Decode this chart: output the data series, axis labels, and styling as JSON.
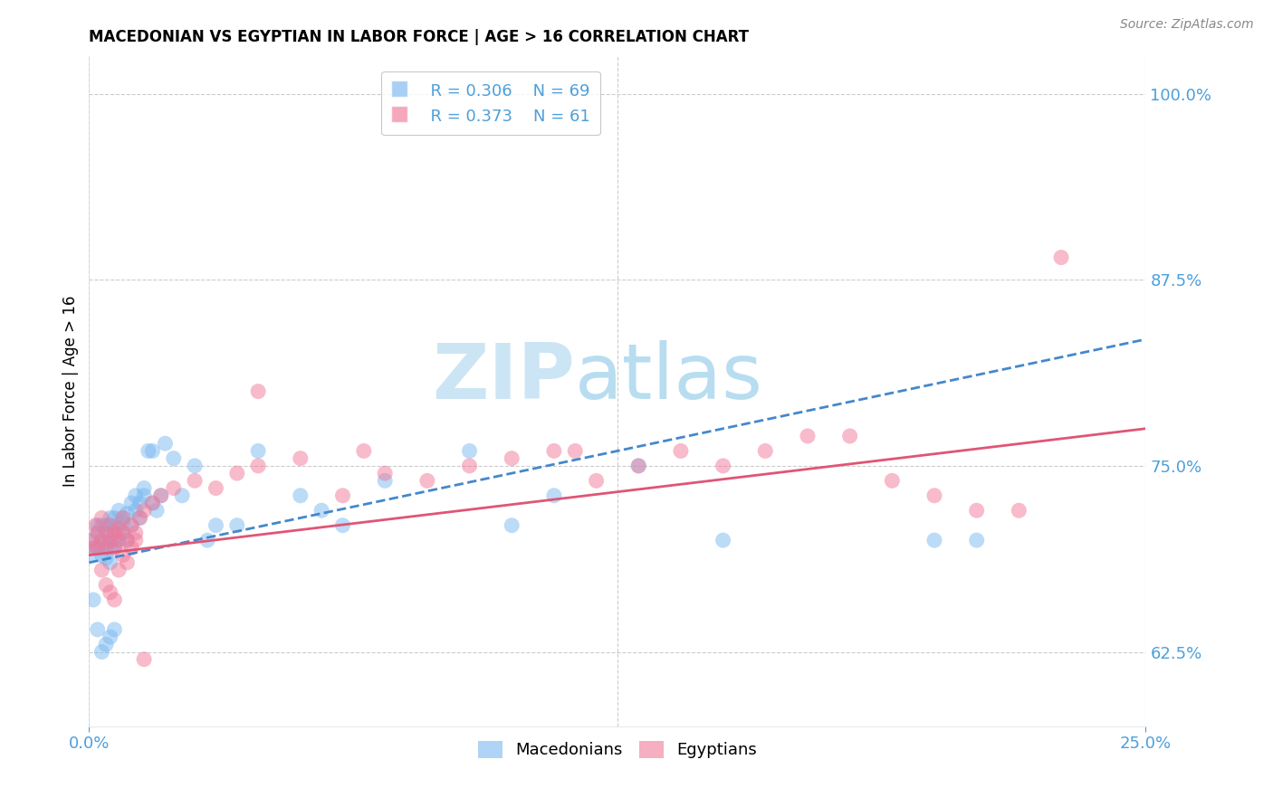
{
  "title": "MACEDONIAN VS EGYPTIAN IN LABOR FORCE | AGE > 16 CORRELATION CHART",
  "source": "Source: ZipAtlas.com",
  "ylabel": "In Labor Force | Age > 16",
  "xlim": [
    0.0,
    0.25
  ],
  "ylim": [
    0.575,
    1.025
  ],
  "xticks": [
    0.0,
    0.25
  ],
  "xtick_labels": [
    "0.0%",
    "25.0%"
  ],
  "yticks": [
    0.625,
    0.75,
    0.875,
    1.0
  ],
  "ytick_labels": [
    "62.5%",
    "75.0%",
    "87.5%",
    "100.0%"
  ],
  "macedonian_color": "#7ab8f0",
  "egyptian_color": "#f07898",
  "macedonian_line_color": "#4488cc",
  "egyptian_line_color": "#e05575",
  "tick_label_color": "#4d9fdb",
  "grid_color": "#cccccc",
  "background_color": "#ffffff",
  "watermark_color": "#cce5f5",
  "legend_r_mac": "R = 0.306",
  "legend_n_mac": "N = 69",
  "legend_r_egy": "R = 0.373",
  "legend_n_egy": "N = 61",
  "mac_trend_x0": 0.0,
  "mac_trend_x1": 0.25,
  "mac_trend_y0": 0.685,
  "mac_trend_y1": 0.835,
  "egy_trend_x0": 0.0,
  "egy_trend_x1": 0.25,
  "egy_trend_y0": 0.69,
  "egy_trend_y1": 0.775,
  "macedonian_x": [
    0.0005,
    0.001,
    0.0015,
    0.002,
    0.002,
    0.002,
    0.003,
    0.003,
    0.003,
    0.003,
    0.004,
    0.004,
    0.004,
    0.004,
    0.005,
    0.005,
    0.005,
    0.005,
    0.005,
    0.006,
    0.006,
    0.006,
    0.006,
    0.007,
    0.007,
    0.007,
    0.008,
    0.008,
    0.008,
    0.009,
    0.009,
    0.01,
    0.01,
    0.011,
    0.011,
    0.012,
    0.012,
    0.013,
    0.013,
    0.014,
    0.015,
    0.015,
    0.016,
    0.017,
    0.018,
    0.02,
    0.022,
    0.025,
    0.028,
    0.03,
    0.035,
    0.04,
    0.05,
    0.055,
    0.06,
    0.07,
    0.09,
    0.1,
    0.11,
    0.13,
    0.15,
    0.2,
    0.21,
    0.001,
    0.002,
    0.003,
    0.004,
    0.005,
    0.006
  ],
  "macedonian_y": [
    0.69,
    0.7,
    0.695,
    0.71,
    0.695,
    0.705,
    0.71,
    0.7,
    0.695,
    0.69,
    0.705,
    0.698,
    0.688,
    0.71,
    0.715,
    0.7,
    0.695,
    0.685,
    0.71,
    0.708,
    0.7,
    0.695,
    0.715,
    0.71,
    0.7,
    0.72,
    0.715,
    0.705,
    0.712,
    0.718,
    0.7,
    0.725,
    0.71,
    0.72,
    0.73,
    0.725,
    0.715,
    0.73,
    0.735,
    0.76,
    0.725,
    0.76,
    0.72,
    0.73,
    0.765,
    0.755,
    0.73,
    0.75,
    0.7,
    0.71,
    0.71,
    0.76,
    0.73,
    0.72,
    0.71,
    0.74,
    0.76,
    0.71,
    0.73,
    0.75,
    0.7,
    0.7,
    0.7,
    0.66,
    0.64,
    0.625,
    0.63,
    0.635,
    0.64
  ],
  "egyptian_x": [
    0.0005,
    0.001,
    0.0015,
    0.002,
    0.002,
    0.003,
    0.003,
    0.004,
    0.004,
    0.005,
    0.005,
    0.006,
    0.006,
    0.007,
    0.007,
    0.008,
    0.008,
    0.009,
    0.01,
    0.011,
    0.012,
    0.013,
    0.015,
    0.017,
    0.02,
    0.025,
    0.03,
    0.035,
    0.04,
    0.05,
    0.06,
    0.065,
    0.07,
    0.08,
    0.09,
    0.1,
    0.11,
    0.115,
    0.12,
    0.13,
    0.14,
    0.15,
    0.16,
    0.17,
    0.18,
    0.19,
    0.2,
    0.21,
    0.22,
    0.23,
    0.003,
    0.004,
    0.005,
    0.006,
    0.007,
    0.008,
    0.009,
    0.01,
    0.011,
    0.013,
    0.04
  ],
  "egyptian_y": [
    0.7,
    0.695,
    0.71,
    0.705,
    0.695,
    0.715,
    0.7,
    0.705,
    0.695,
    0.71,
    0.7,
    0.705,
    0.695,
    0.708,
    0.7,
    0.715,
    0.705,
    0.7,
    0.71,
    0.705,
    0.715,
    0.72,
    0.725,
    0.73,
    0.735,
    0.74,
    0.735,
    0.745,
    0.75,
    0.755,
    0.73,
    0.76,
    0.745,
    0.74,
    0.75,
    0.755,
    0.76,
    0.76,
    0.74,
    0.75,
    0.76,
    0.75,
    0.76,
    0.77,
    0.77,
    0.74,
    0.73,
    0.72,
    0.72,
    0.89,
    0.68,
    0.67,
    0.665,
    0.66,
    0.68,
    0.69,
    0.685,
    0.695,
    0.7,
    0.62,
    0.8
  ]
}
